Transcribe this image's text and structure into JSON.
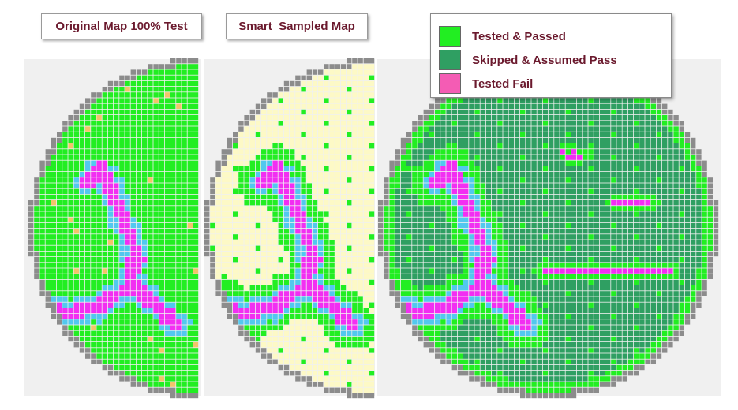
{
  "panels": {
    "original": {
      "title": "Original Map 100% Test"
    },
    "sampled": {
      "title": "Smart  Sampled Map"
    }
  },
  "legend": {
    "items": [
      {
        "label": "Tested & Passed"
      },
      {
        "label": "Skipped & Assumed Pass"
      },
      {
        "label": "Tested Fail"
      }
    ]
  }
}
